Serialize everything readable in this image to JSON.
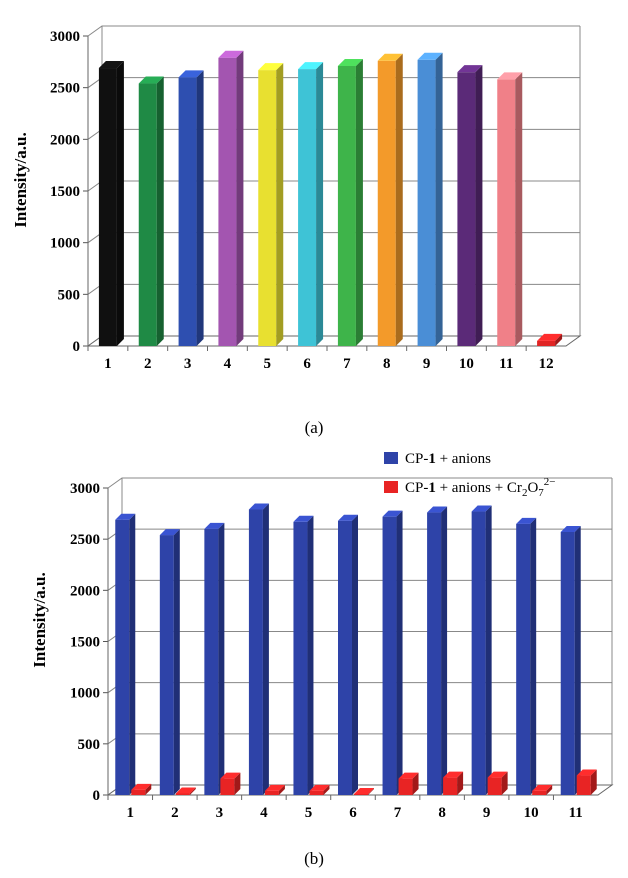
{
  "chart_data": [
    {
      "type": "bar",
      "panel_label": "(a)",
      "ylabel": "Intensity/a.u.",
      "ylim": [
        0,
        3000
      ],
      "yticks": [
        "0",
        "500",
        "1000",
        "1500",
        "2000",
        "2500",
        "3000"
      ],
      "categories": [
        "1",
        "2",
        "3",
        "4",
        "5",
        "6",
        "7",
        "8",
        "9",
        "10",
        "11",
        "12"
      ],
      "values": [
        2690,
        2540,
        2600,
        2790,
        2670,
        2680,
        2710,
        2760,
        2770,
        2650,
        2580,
        50
      ],
      "colors": [
        "#101010",
        "#1f8a45",
        "#2e4fb0",
        "#a355b0",
        "#e8e030",
        "#3ec3d6",
        "#3eb44a",
        "#f39a2a",
        "#4a8ed6",
        "#5b2a78",
        "#f08088",
        "#e02424"
      ],
      "grid": true
    },
    {
      "type": "bar",
      "panel_label": "(b)",
      "ylabel": "Intensity/a.u.",
      "ylim": [
        0,
        3000
      ],
      "yticks": [
        "0",
        "500",
        "1000",
        "1500",
        "2000",
        "2500",
        "3000"
      ],
      "categories": [
        "1",
        "2",
        "3",
        "4",
        "5",
        "6",
        "7",
        "8",
        "9",
        "10",
        "11"
      ],
      "series": [
        {
          "name": "CP-1 + anions",
          "color": "#2e43a8",
          "values": [
            2690,
            2540,
            2600,
            2790,
            2670,
            2680,
            2720,
            2760,
            2770,
            2650,
            2570
          ]
        },
        {
          "name": "CP-1 + anions + Cr2O7 2−",
          "color": "#e82424",
          "values": [
            50,
            15,
            160,
            40,
            40,
            10,
            160,
            170,
            170,
            40,
            190
          ]
        }
      ],
      "legend": [
        {
          "prefix": "CP-",
          "bold": "1",
          "suffix": " + anions",
          "color": "#2e43a8"
        },
        {
          "prefix": "CP-",
          "bold": "1",
          "suffix": " + anions + Cr",
          "sub1": "2",
          "mid": "O",
          "sub2": "7",
          "sup": "2−",
          "color": "#e82424"
        }
      ],
      "legend_position": "top-right",
      "grid": true
    }
  ]
}
